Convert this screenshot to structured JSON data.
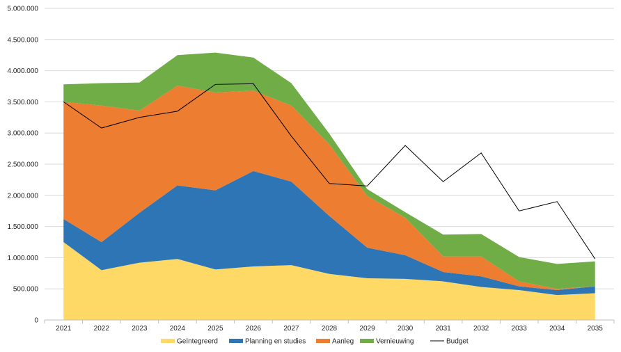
{
  "chart_data": {
    "type": "area",
    "stacked": true,
    "categories": [
      "2021",
      "2022",
      "2023",
      "2024",
      "2025",
      "2026",
      "2027",
      "2028",
      "2029",
      "2030",
      "2031",
      "2032",
      "2033",
      "2034",
      "2035"
    ],
    "series": [
      {
        "name": "Geïntegreerd",
        "color": "#FFD966",
        "values": [
          1250000,
          800000,
          920000,
          980000,
          810000,
          860000,
          880000,
          740000,
          670000,
          660000,
          620000,
          530000,
          480000,
          400000,
          430000
        ]
      },
      {
        "name": "Planning en studies",
        "color": "#2E75B6",
        "values": [
          370000,
          450000,
          800000,
          1180000,
          1270000,
          1530000,
          1340000,
          930000,
          490000,
          380000,
          150000,
          170000,
          60000,
          80000,
          110000
        ]
      },
      {
        "name": "Aanleg",
        "color": "#ED7D31",
        "values": [
          1880000,
          2190000,
          1640000,
          1600000,
          1570000,
          1290000,
          1220000,
          1150000,
          830000,
          600000,
          250000,
          320000,
          80000,
          20000,
          0
        ]
      },
      {
        "name": "Vernieuwing",
        "color": "#70AD47",
        "values": [
          280000,
          360000,
          450000,
          490000,
          640000,
          530000,
          360000,
          170000,
          110000,
          90000,
          350000,
          360000,
          390000,
          400000,
          400000
        ]
      }
    ],
    "lines": [
      {
        "name": "Budget",
        "color": "#000000",
        "values": [
          3500000,
          3080000,
          3250000,
          3350000,
          3780000,
          3790000,
          2950000,
          2190000,
          2150000,
          2800000,
          2220000,
          2680000,
          1750000,
          1900000,
          980000
        ]
      }
    ],
    "ylim": [
      0,
      5000000
    ],
    "yticks": [
      0,
      500000,
      1000000,
      1500000,
      2000000,
      2500000,
      3000000,
      3500000,
      4000000,
      4500000,
      5000000
    ],
    "ytick_labels": [
      "0",
      "500.000",
      "1.000.000",
      "1.500.000",
      "2.000.000",
      "2.500.000",
      "3.000.000",
      "3.500.000",
      "4.000.000",
      "4.500.000",
      "5.000.000"
    ],
    "grid": true,
    "legend_position": "bottom",
    "title": "",
    "xlabel": "",
    "ylabel": ""
  }
}
